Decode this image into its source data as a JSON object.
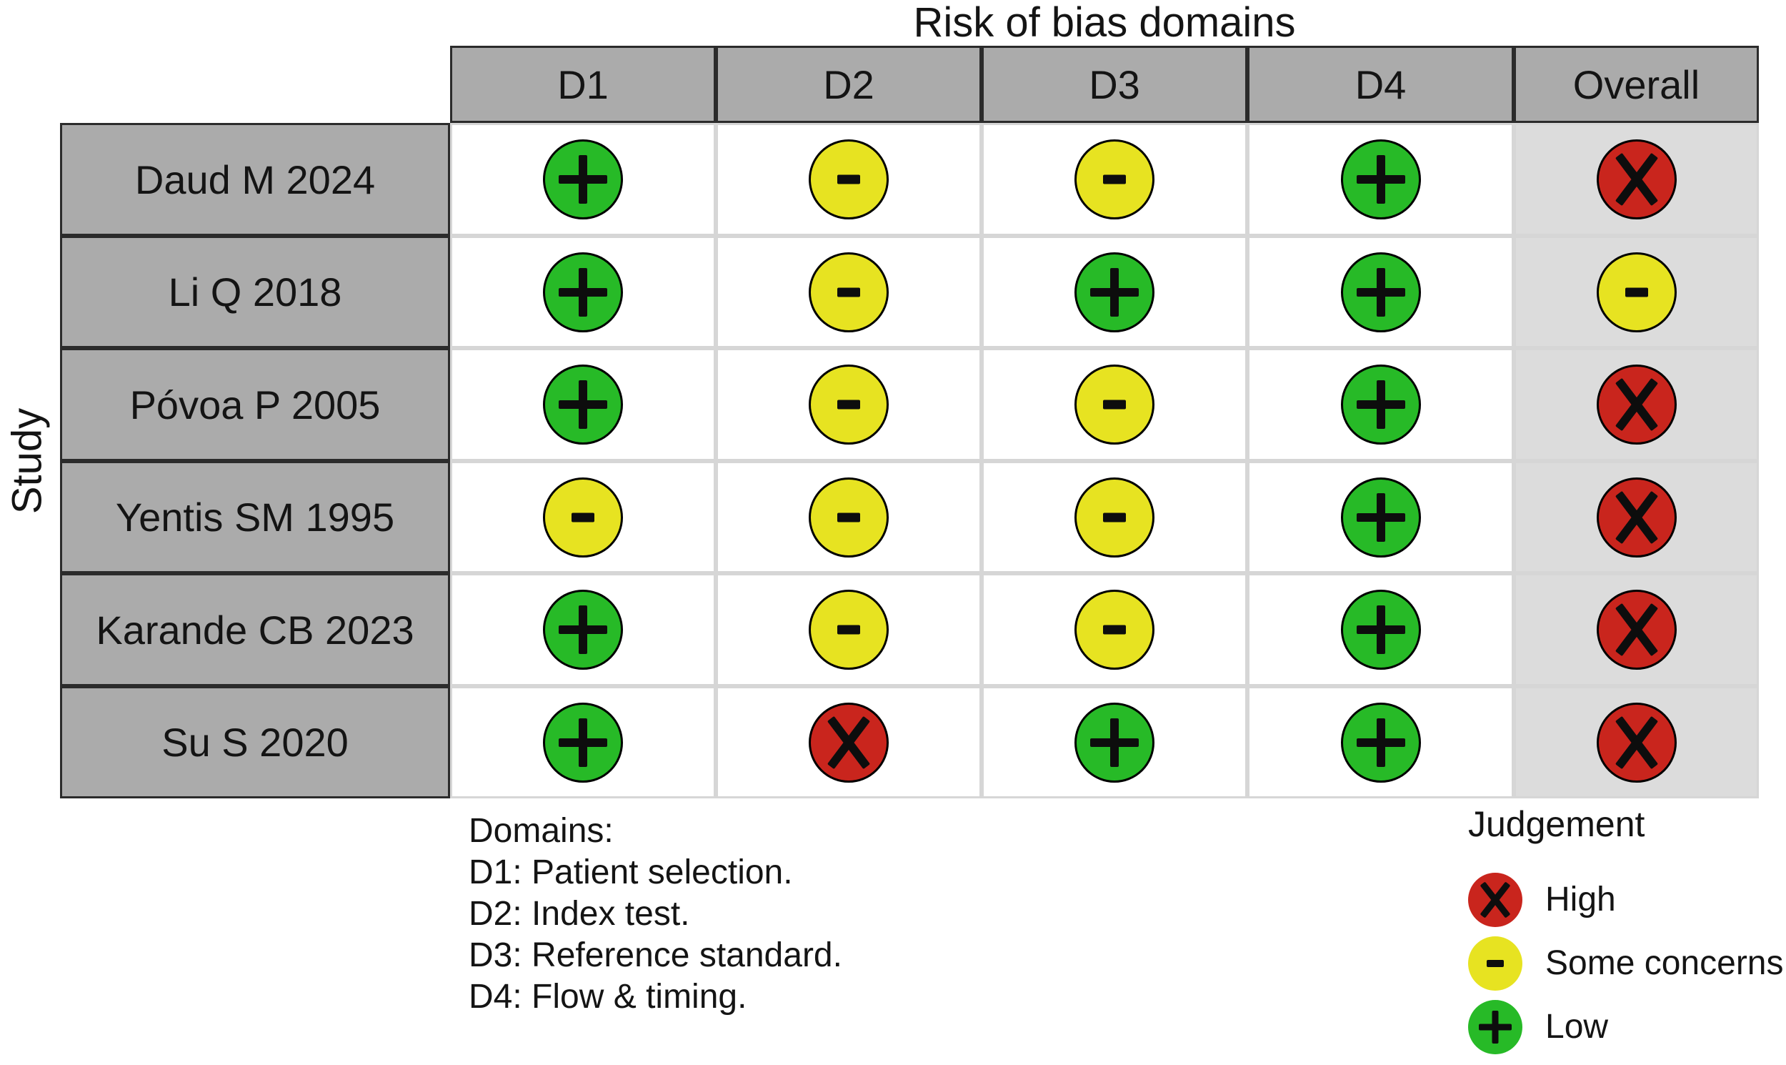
{
  "title": "Risk of bias domains",
  "axis_label": "Study",
  "columns": [
    "D1",
    "D2",
    "D3",
    "D4",
    "Overall"
  ],
  "studies": [
    {
      "name": "Daud M 2024",
      "judgements": [
        "low",
        "some",
        "some",
        "low",
        "high"
      ]
    },
    {
      "name": "Li Q 2018",
      "judgements": [
        "low",
        "some",
        "low",
        "low",
        "some"
      ]
    },
    {
      "name": "Póvoa P 2005",
      "judgements": [
        "low",
        "some",
        "some",
        "low",
        "high"
      ]
    },
    {
      "name": "Yentis SM 1995",
      "judgements": [
        "some",
        "some",
        "some",
        "low",
        "high"
      ]
    },
    {
      "name": "Karande CB 2023",
      "judgements": [
        "low",
        "some",
        "some",
        "low",
        "high"
      ]
    },
    {
      "name": "Su S 2020",
      "judgements": [
        "low",
        "high",
        "low",
        "low",
        "high"
      ]
    }
  ],
  "footnotes": {
    "heading": "Domains:",
    "items": [
      "D1: Patient selection.",
      "D2: Index test.",
      "D3: Reference standard.",
      "D4: Flow & timing."
    ]
  },
  "legend": {
    "title": "Judgement",
    "items": [
      {
        "judgement": "high",
        "symbol": "x",
        "label": "High"
      },
      {
        "judgement": "some",
        "symbol": "-",
        "label": "Some concerns"
      },
      {
        "judgement": "low",
        "symbol": "+",
        "label": "Low"
      }
    ]
  },
  "colors": {
    "high": "#C9251D",
    "some": "#E7E321",
    "low": "#27BA27",
    "header_bg": "#ABABAB",
    "overall_bg": "#DCDCDC",
    "grid_dark": "#2B2B2B",
    "grid_light": "#D6D6D6",
    "symbol": "#0D0D0D"
  },
  "chart_data": {
    "type": "table",
    "title": "Risk of bias domains",
    "row_axis_label": "Study",
    "columns": [
      "D1",
      "D2",
      "D3",
      "D4",
      "Overall"
    ],
    "rows": [
      "Daud M 2024",
      "Li Q 2018",
      "Póvoa P 2005",
      "Yentis SM 1995",
      "Karande CB 2023",
      "Su S 2020"
    ],
    "values": [
      [
        "Low",
        "Some concerns",
        "Some concerns",
        "Low",
        "High"
      ],
      [
        "Low",
        "Some concerns",
        "Low",
        "Low",
        "Some concerns"
      ],
      [
        "Low",
        "Some concerns",
        "Some concerns",
        "Low",
        "High"
      ],
      [
        "Some concerns",
        "Some concerns",
        "Some concerns",
        "Low",
        "High"
      ],
      [
        "Low",
        "Some concerns",
        "Some concerns",
        "Low",
        "High"
      ],
      [
        "Low",
        "High",
        "Low",
        "Low",
        "High"
      ]
    ],
    "legend": [
      {
        "label": "High",
        "marker": "red circle with X"
      },
      {
        "label": "Some concerns",
        "marker": "yellow circle with minus"
      },
      {
        "label": "Low",
        "marker": "green circle with plus"
      }
    ],
    "footnotes": [
      "D1: Patient selection.",
      "D2: Index test.",
      "D3: Reference standard.",
      "D4: Flow & timing."
    ]
  }
}
